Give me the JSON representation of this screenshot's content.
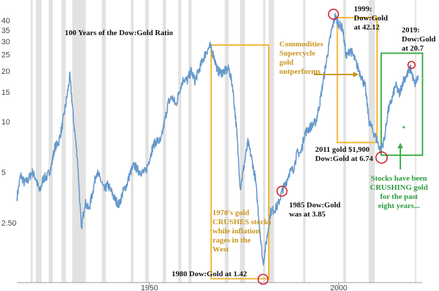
{
  "chart_data": {
    "type": "line",
    "title": "100 Years of the Dow:Gold Ratio",
    "xlabel": "",
    "ylabel": "",
    "y_scale": "log",
    "xlim": [
      1915,
      2022
    ],
    "ylim": [
      1.1,
      48
    ],
    "x_ticks": [
      "1950",
      "2000"
    ],
    "y_ticks": [
      "40",
      "35",
      "30",
      "25",
      "20",
      "15",
      "10",
      "5",
      "2.50"
    ],
    "recessions": [
      [
        1918.6,
        1919.2
      ],
      [
        1920.0,
        1921.5
      ],
      [
        1923.4,
        1924.5
      ],
      [
        1926.8,
        1927.9
      ],
      [
        1929.6,
        1933.2
      ],
      [
        1937.4,
        1938.5
      ],
      [
        1945.1,
        1945.8
      ],
      [
        1948.9,
        1949.8
      ],
      [
        1953.5,
        1954.4
      ],
      [
        1957.6,
        1958.4
      ],
      [
        1960.3,
        1961.1
      ],
      [
        1969.9,
        1970.9
      ],
      [
        1973.9,
        1975.2
      ],
      [
        1980.0,
        1980.6
      ],
      [
        1981.5,
        1982.9
      ],
      [
        1990.6,
        1991.2
      ],
      [
        2001.2,
        2001.9
      ],
      [
        2007.9,
        2009.5
      ],
      [
        2020.1,
        2020.4
      ]
    ],
    "series": [
      {
        "name": "Dow:Gold Ratio",
        "color": "#6699cc",
        "points": [
          [
            1915,
            3.5
          ],
          [
            1916,
            4.8
          ],
          [
            1917,
            4.3
          ],
          [
            1918,
            4.5
          ],
          [
            1919,
            5.0
          ],
          [
            1920,
            4.6
          ],
          [
            1921,
            3.8
          ],
          [
            1922,
            4.6
          ],
          [
            1923,
            4.7
          ],
          [
            1924,
            5.3
          ],
          [
            1925,
            7.0
          ],
          [
            1926,
            7.5
          ],
          [
            1927,
            9.5
          ],
          [
            1928,
            13.0
          ],
          [
            1929,
            18.5
          ],
          [
            1930,
            10.0
          ],
          [
            1931,
            6.0
          ],
          [
            1932,
            2.3
          ],
          [
            1933,
            3.3
          ],
          [
            1934,
            3.0
          ],
          [
            1935,
            3.8
          ],
          [
            1936,
            5.0
          ],
          [
            1937,
            4.6
          ],
          [
            1938,
            3.9
          ],
          [
            1939,
            4.2
          ],
          [
            1940,
            3.8
          ],
          [
            1941,
            3.4
          ],
          [
            1942,
            3.2
          ],
          [
            1943,
            3.8
          ],
          [
            1944,
            4.2
          ],
          [
            1945,
            5.0
          ],
          [
            1946,
            5.5
          ],
          [
            1947,
            5.1
          ],
          [
            1948,
            5.0
          ],
          [
            1949,
            5.0
          ],
          [
            1950,
            6.0
          ],
          [
            1951,
            7.2
          ],
          [
            1952,
            7.7
          ],
          [
            1953,
            7.6
          ],
          [
            1954,
            10.0
          ],
          [
            1955,
            13.0
          ],
          [
            1956,
            14.0
          ],
          [
            1957,
            12.5
          ],
          [
            1958,
            15.5
          ],
          [
            1959,
            18.0
          ],
          [
            1960,
            17.5
          ],
          [
            1961,
            20.0
          ],
          [
            1962,
            17.5
          ],
          [
            1963,
            20.0
          ],
          [
            1964,
            23.0
          ],
          [
            1965,
            26.0
          ],
          [
            1966,
            28.0
          ],
          [
            1967,
            24.5
          ],
          [
            1968,
            20.0
          ],
          [
            1969,
            19.5
          ],
          [
            1970,
            20.0
          ],
          [
            1971,
            20.5
          ],
          [
            1972,
            16.0
          ],
          [
            1973,
            9.0
          ],
          [
            1974,
            4.0
          ],
          [
            1975,
            5.5
          ],
          [
            1976,
            7.5
          ],
          [
            1977,
            6.0
          ],
          [
            1978,
            4.5
          ],
          [
            1979,
            2.5
          ],
          [
            1980,
            1.42
          ],
          [
            1981,
            2.0
          ],
          [
            1982,
            2.9
          ],
          [
            1983,
            3.0
          ],
          [
            1984,
            3.2
          ],
          [
            1985,
            3.85
          ],
          [
            1986,
            4.3
          ],
          [
            1987,
            5.0
          ],
          [
            1988,
            5.2
          ],
          [
            1989,
            6.5
          ],
          [
            1990,
            6.5
          ],
          [
            1991,
            8.5
          ],
          [
            1992,
            9.0
          ],
          [
            1993,
            9.5
          ],
          [
            1994,
            10.0
          ],
          [
            1995,
            13.0
          ],
          [
            1996,
            18.0
          ],
          [
            1997,
            25.0
          ],
          [
            1998,
            34.0
          ],
          [
            1999,
            42.12
          ],
          [
            2000,
            38.0
          ],
          [
            2001,
            36.0
          ],
          [
            2002,
            24.0
          ],
          [
            2003,
            27.0
          ],
          [
            2004,
            24.0
          ],
          [
            2005,
            21.0
          ],
          [
            2006,
            18.5
          ],
          [
            2007,
            16.0
          ],
          [
            2008,
            10.0
          ],
          [
            2009,
            8.8
          ],
          [
            2010,
            7.8
          ],
          [
            2011,
            6.74
          ],
          [
            2012,
            7.8
          ],
          [
            2013,
            11.5
          ],
          [
            2014,
            13.5
          ],
          [
            2015,
            16.5
          ],
          [
            2016,
            14.5
          ],
          [
            2017,
            17.5
          ],
          [
            2018,
            19.0
          ],
          [
            2019,
            20.7
          ],
          [
            2020,
            16.5
          ],
          [
            2021,
            18.5
          ]
        ]
      }
    ],
    "annotations": {
      "a1970s": "1970's gold CRUSHES stocks while inflation rages in the West",
      "a1980": "1980 Dow:Gold at 1.42",
      "a1985": "1985 Dow:Gold was at 3.85",
      "a1999": "1999: Dow:Gold at 42.12",
      "commodities": "Commodities Supercycle gold outperforms",
      "a2011": "2011 gold $1,900 Dow:Gold at 6.74",
      "a2019": "2019: Dow:Gold at 20.7",
      "stocks": "Stocks have been CRUSHING gold for the past eight years..."
    },
    "colors": {
      "line": "#6699cc",
      "recession": "#e2e2e2",
      "box_yellow": "#f2b632",
      "annotation_gold": "#c8961e",
      "box_green": "#3cae48",
      "annotation_green": "#2e9a3e",
      "circle": "#cc2233",
      "text": "#111111"
    }
  }
}
